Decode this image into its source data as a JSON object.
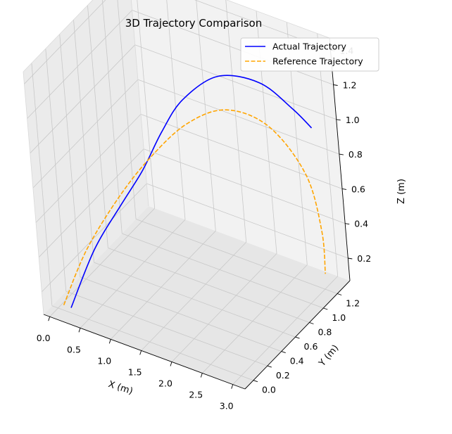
{
  "chart_data": {
    "type": "line",
    "projection": "3d",
    "title": "3D Trajectory Comparison",
    "xlabel": "X (m)",
    "ylabel": "Y (m)",
    "zlabel": "Z (m)",
    "xlim": [
      -0.1,
      3.2
    ],
    "ylim": [
      -0.12,
      1.38
    ],
    "zlim": [
      0.07,
      1.47
    ],
    "xticks": [
      "0.0",
      "0.5",
      "1.0",
      "1.5",
      "2.0",
      "2.5",
      "3.0"
    ],
    "yticks": [
      "0.0",
      "0.2",
      "0.4",
      "0.6",
      "0.8",
      "1.0",
      "1.2"
    ],
    "zticks": [
      "0.2",
      "0.4",
      "0.6",
      "0.8",
      "1.0",
      "1.2",
      "1.4"
    ],
    "grid": true,
    "legend": "top-right",
    "series": [
      {
        "name": "Actual Trajectory",
        "color": "#0000ff",
        "linestyle": "solid",
        "points": [
          [
            0.22,
            0.0,
            0.1
          ],
          [
            0.7,
            0.0,
            0.5
          ],
          [
            1.2,
            0.02,
            0.82
          ],
          [
            1.5,
            0.1,
            1.02
          ],
          [
            1.68,
            0.25,
            1.2
          ],
          [
            1.82,
            0.45,
            1.32
          ],
          [
            2.1,
            0.72,
            1.38
          ],
          [
            2.5,
            0.95,
            1.3
          ],
          [
            2.8,
            1.12,
            1.12
          ],
          [
            3.0,
            1.2,
            1.0
          ]
        ]
      },
      {
        "name": "Reference Trajectory",
        "color": "#ffa500",
        "linestyle": "dashed",
        "points": [
          [
            0.1,
            0.0,
            0.1
          ],
          [
            0.5,
            0.05,
            0.45
          ],
          [
            1.0,
            0.15,
            0.78
          ],
          [
            1.4,
            0.3,
            1.0
          ],
          [
            1.8,
            0.5,
            1.16
          ],
          [
            2.2,
            0.72,
            1.2
          ],
          [
            2.6,
            0.95,
            1.06
          ],
          [
            2.9,
            1.15,
            0.74
          ],
          [
            3.0,
            1.22,
            0.4
          ],
          [
            3.0,
            1.22,
            0.15
          ]
        ]
      }
    ]
  }
}
